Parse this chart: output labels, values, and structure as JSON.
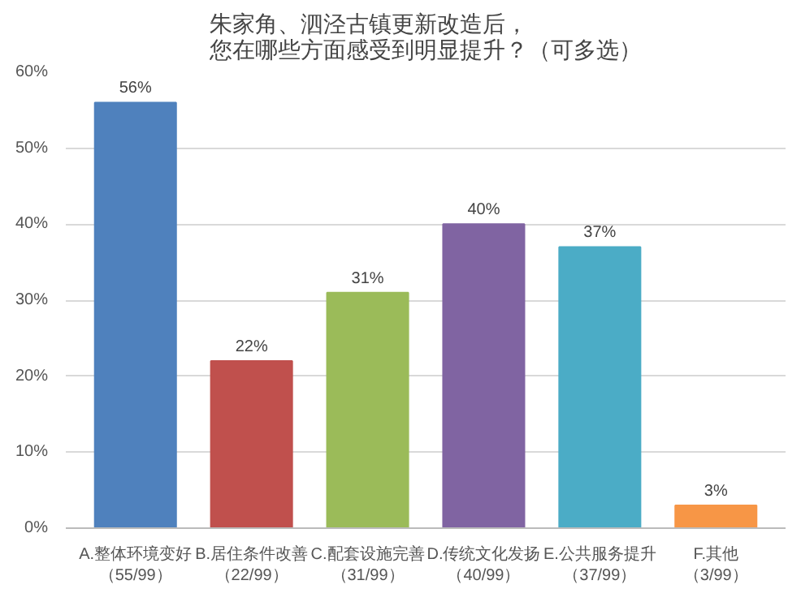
{
  "chart_data": {
    "type": "bar",
    "title": "朱家角、泗泾古镇更新改造后，您在哪些方面感受到明显提升？（可多选）",
    "categories": [
      "A.整体环境变好（55/99）",
      "B.居住条件改善（22/99）",
      "C.配套设施完善（31/99）",
      "D.传统文化发扬（40/99）",
      "E.公共服务提升（37/99）",
      "F.其他（3/99）"
    ],
    "values": [
      56,
      22,
      31,
      40,
      37,
      3
    ],
    "colors": [
      "#4f81bd",
      "#c0504d",
      "#9bbb59",
      "#8064a2",
      "#4bacc6",
      "#f79646"
    ],
    "value_labels": [
      "56%",
      "22%",
      "31%",
      "40%",
      "37%",
      "3%"
    ],
    "ylim": [
      0,
      60
    ],
    "yticks": [
      {
        "value": 0,
        "label": "0%"
      },
      {
        "value": 10,
        "label": "10%"
      },
      {
        "value": 20,
        "label": "20%"
      },
      {
        "value": 30,
        "label": "30%"
      },
      {
        "value": 40,
        "label": "40%"
      },
      {
        "value": 50,
        "label": "50%"
      },
      {
        "value": 60,
        "label": "60%"
      }
    ],
    "grid": "y"
  }
}
